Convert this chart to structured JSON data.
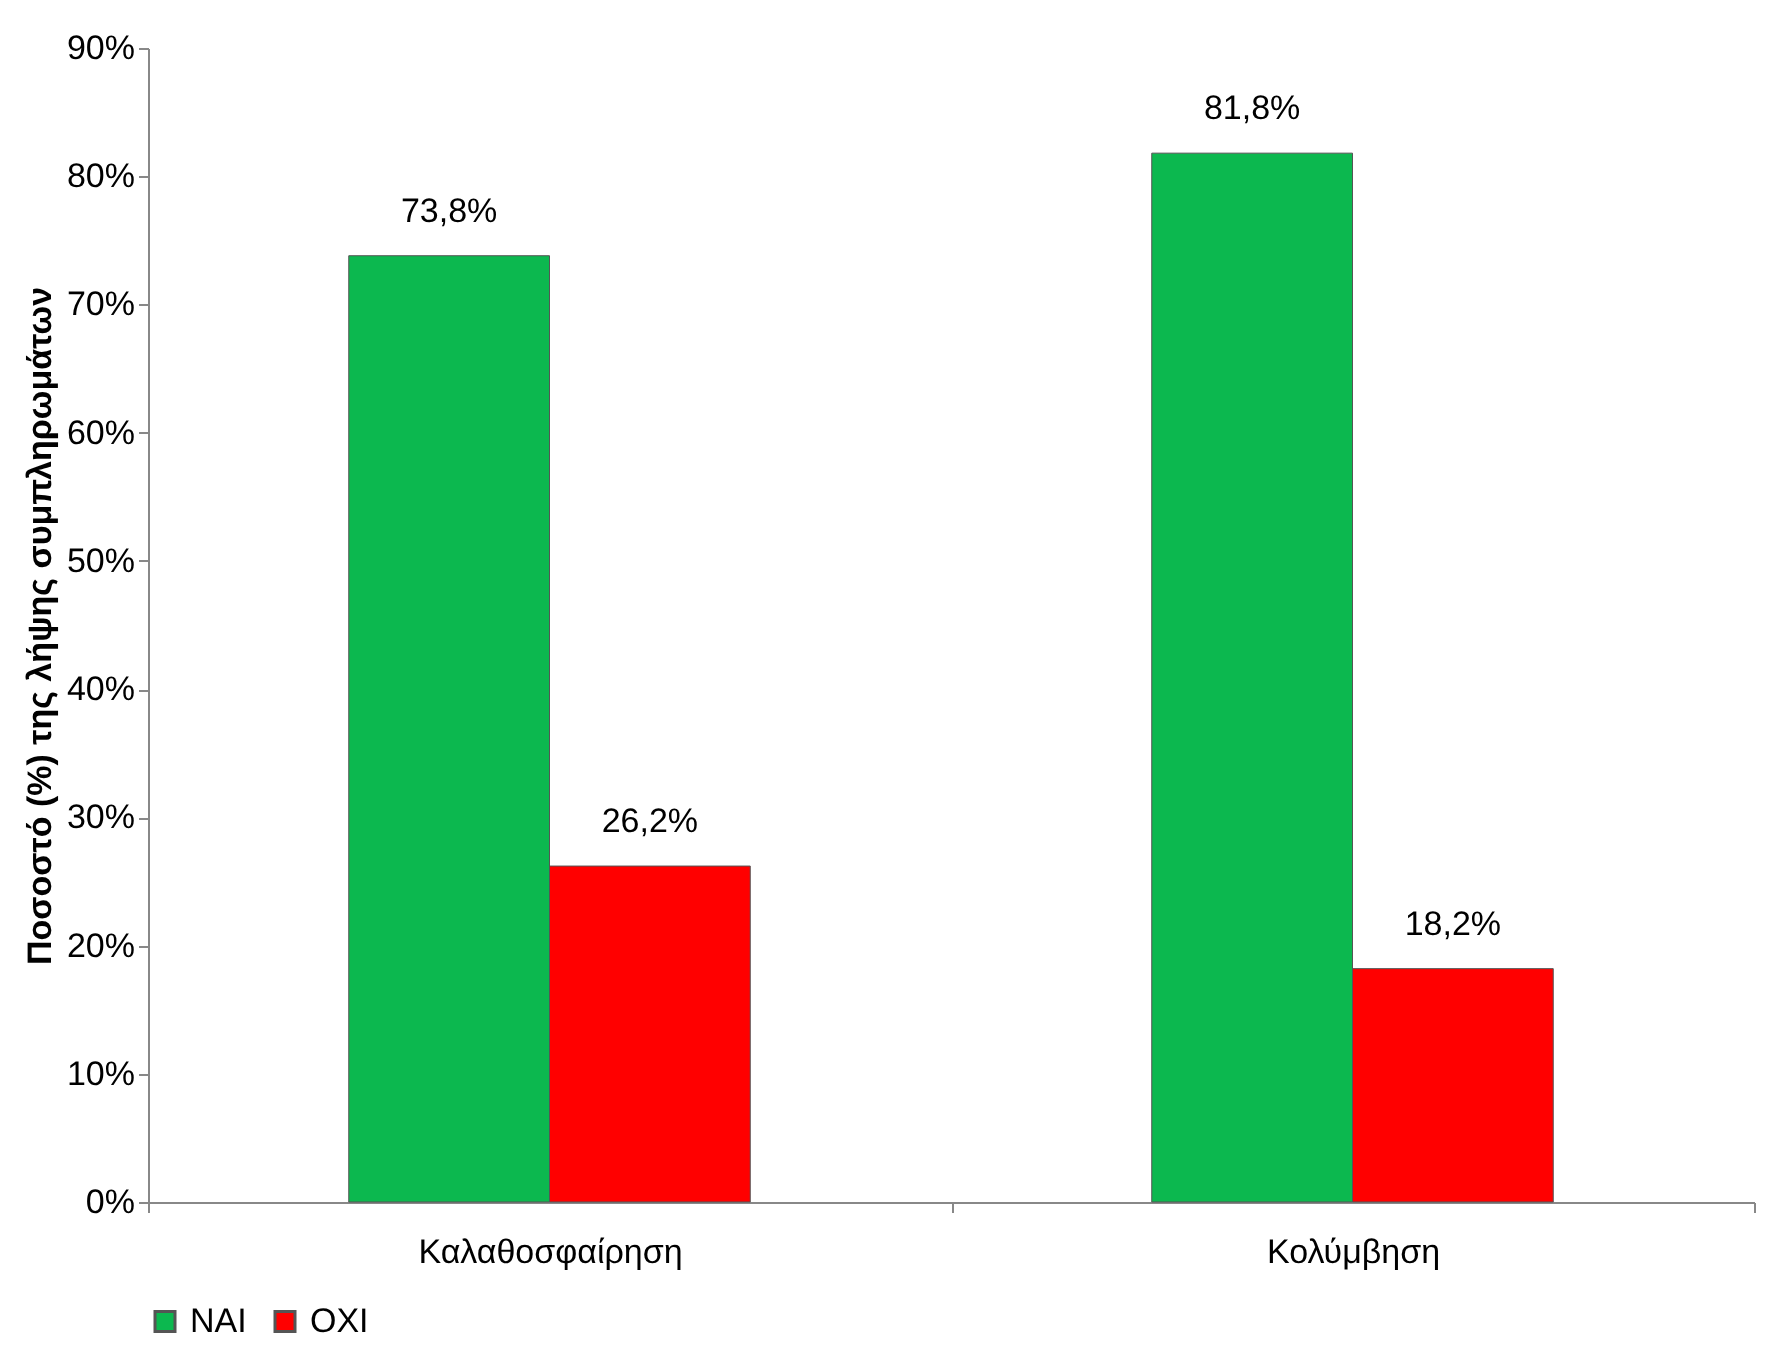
{
  "chart_data": {
    "type": "bar",
    "ylabel": "Ποσοστό (%) της λήψης συμπληρωμάτων",
    "categories": [
      "Καλαθοσφαίρηση",
      "Κολύμβηση"
    ],
    "series": [
      {
        "name": "ΝΑΙ",
        "color": "#0cb84f",
        "values": [
          73.8,
          81.8
        ],
        "value_labels": [
          "73,8%",
          "81,8%"
        ]
      },
      {
        "name": "ΟΧΙ",
        "color": "#ff0000",
        "values": [
          26.2,
          18.2
        ],
        "value_labels": [
          "26,2%",
          "18,2%"
        ]
      }
    ],
    "ylim": [
      0,
      90
    ],
    "yticks": [
      {
        "value": 0,
        "label": "0%"
      },
      {
        "value": 10,
        "label": "10%"
      },
      {
        "value": 20,
        "label": "20%"
      },
      {
        "value": 30,
        "label": "30%"
      },
      {
        "value": 40,
        "label": "40%"
      },
      {
        "value": 50,
        "label": "50%"
      },
      {
        "value": 60,
        "label": "60%"
      },
      {
        "value": 70,
        "label": "70%"
      },
      {
        "value": 80,
        "label": "80%"
      },
      {
        "value": 90,
        "label": "90%"
      }
    ],
    "grid": false,
    "legend": "bottom"
  }
}
